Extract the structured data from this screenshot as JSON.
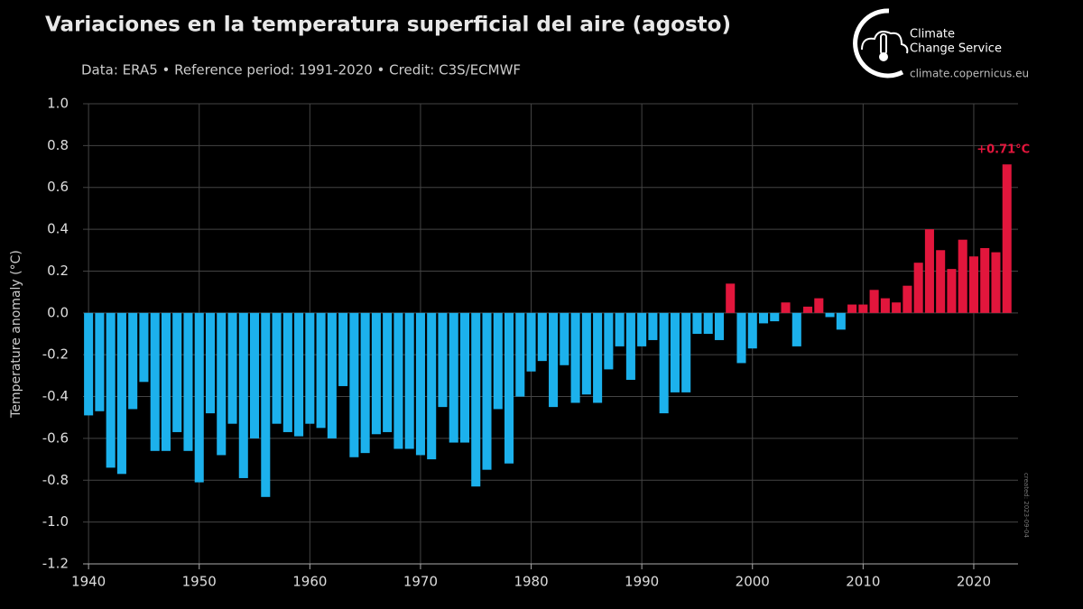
{
  "chart_data": {
    "type": "bar",
    "title": "Variaciones en la temperatura superficial del aire (agosto)",
    "subtitle": "Data: ERA5 • Reference period: 1991-2020 • Credit: C3S/ECMWF",
    "ylabel": "Temperature anomaly (°C)",
    "annotation": "+0.71°C",
    "created": "created: 2023-09-04",
    "x": [
      1940,
      1941,
      1942,
      1943,
      1944,
      1945,
      1946,
      1947,
      1948,
      1949,
      1950,
      1951,
      1952,
      1953,
      1954,
      1955,
      1956,
      1957,
      1958,
      1959,
      1960,
      1961,
      1962,
      1963,
      1964,
      1965,
      1966,
      1967,
      1968,
      1969,
      1970,
      1971,
      1972,
      1973,
      1974,
      1975,
      1976,
      1977,
      1978,
      1979,
      1980,
      1981,
      1982,
      1983,
      1984,
      1985,
      1986,
      1987,
      1988,
      1989,
      1990,
      1991,
      1992,
      1993,
      1994,
      1995,
      1996,
      1997,
      1998,
      1999,
      2000,
      2001,
      2002,
      2003,
      2004,
      2005,
      2006,
      2007,
      2008,
      2009,
      2010,
      2011,
      2012,
      2013,
      2014,
      2015,
      2016,
      2017,
      2018,
      2019,
      2020,
      2021,
      2022,
      2023
    ],
    "values": [
      -0.49,
      -0.47,
      -0.74,
      -0.77,
      -0.46,
      -0.33,
      -0.66,
      -0.66,
      -0.57,
      -0.66,
      -0.81,
      -0.48,
      -0.68,
      -0.53,
      -0.79,
      -0.6,
      -0.88,
      -0.53,
      -0.57,
      -0.59,
      -0.53,
      -0.55,
      -0.6,
      -0.35,
      -0.69,
      -0.67,
      -0.58,
      -0.57,
      -0.65,
      -0.65,
      -0.68,
      -0.7,
      -0.45,
      -0.62,
      -0.62,
      -0.83,
      -0.75,
      -0.46,
      -0.72,
      -0.4,
      -0.28,
      -0.23,
      -0.45,
      -0.25,
      -0.43,
      -0.39,
      -0.43,
      -0.27,
      -0.16,
      -0.32,
      -0.16,
      -0.13,
      -0.48,
      -0.38,
      -0.38,
      -0.1,
      -0.1,
      -0.13,
      0.14,
      -0.24,
      -0.17,
      -0.05,
      -0.04,
      0.05,
      -0.16,
      0.03,
      0.07,
      -0.02,
      -0.08,
      0.04,
      0.04,
      0.11,
      0.07,
      0.05,
      0.13,
      0.24,
      0.4,
      0.3,
      0.21,
      0.35,
      0.27,
      0.31,
      0.29,
      0.71
    ],
    "positive_color": "#e2163c",
    "negative_color": "#1cb1ec",
    "xlim": [
      1939.5,
      2024
    ],
    "xticks": [
      1940,
      1950,
      1960,
      1970,
      1980,
      1990,
      2000,
      2010,
      2020
    ],
    "ylim": [
      -1.2,
      1.0
    ],
    "yticks": [
      {
        "value": 1,
        "label": "1.0"
      },
      0.8,
      0.6,
      0.4,
      0.2,
      {
        "value": 0,
        "label": "0.0"
      },
      -0.2,
      -0.4,
      -0.6,
      -0.8,
      {
        "value": -1,
        "label": "-1.0"
      },
      -1.2
    ],
    "grid": true
  },
  "logo": {
    "line1": "Climate",
    "line2": "Change Service",
    "url": "climate.copernicus.eu"
  }
}
